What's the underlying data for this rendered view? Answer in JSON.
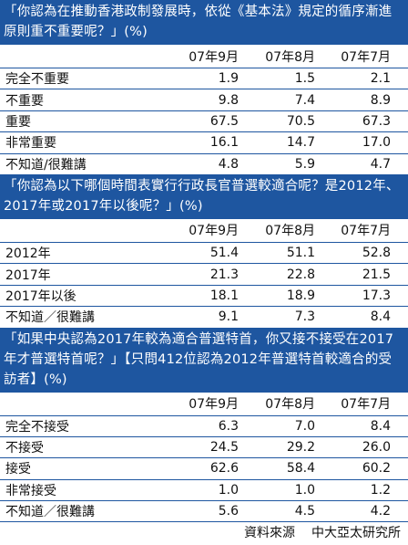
{
  "sections": [
    {
      "question": "「你認為在推動香港政制發展時，依從《基本法》規定的循序漸進原則重不重要呢？」(%)",
      "columns": [
        "07年9月",
        "07年8月",
        "07年7月"
      ],
      "rows": [
        {
          "label": "完全不重要",
          "v": [
            "1.9",
            "1.5",
            "2.1"
          ]
        },
        {
          "label": "不重要",
          "v": [
            "9.8",
            "7.4",
            "8.9"
          ]
        },
        {
          "label": "重要",
          "v": [
            "67.5",
            "70.5",
            "67.3"
          ]
        },
        {
          "label": "非常重要",
          "v": [
            "16.1",
            "14.7",
            "17.0"
          ]
        },
        {
          "label": "不知道/很難講",
          "v": [
            "4.8",
            "5.9",
            "4.7"
          ]
        }
      ]
    },
    {
      "question": "「你認為以下哪個時間表實行行政長官普選較適合呢？是2012年、2017年或2017年以後呢？」(%)",
      "columns": [
        "07年9月",
        "07年8月",
        "07年7月"
      ],
      "rows": [
        {
          "label": "2012年",
          "v": [
            "51.4",
            "51.1",
            "52.8"
          ]
        },
        {
          "label": "2017年",
          "v": [
            "21.3",
            "22.8",
            "21.5"
          ]
        },
        {
          "label": "2017年以後",
          "v": [
            "18.1",
            "18.9",
            "17.3"
          ]
        },
        {
          "label": "不知道／很難講",
          "v": [
            "9.1",
            "7.3",
            "8.4"
          ]
        }
      ]
    },
    {
      "question": "「如果中央認為2017年較為適合普選特首，你又接不接受在2017年才普選特首呢？」【只問412位認為2012年普選特首較適合的受訪者】(%)",
      "columns": [
        "07年9月",
        "07年8月",
        "07年7月"
      ],
      "rows": [
        {
          "label": "完全不接受",
          "v": [
            "6.3",
            "7.0",
            "8.4"
          ]
        },
        {
          "label": "不接受",
          "v": [
            "24.5",
            "29.2",
            "26.0"
          ]
        },
        {
          "label": "接受",
          "v": [
            "62.6",
            "58.4",
            "60.2"
          ]
        },
        {
          "label": "非常接受",
          "v": [
            "1.0",
            "1.0",
            "1.2"
          ]
        },
        {
          "label": "不知道／很難講",
          "v": [
            "5.6",
            "4.5",
            "4.2"
          ]
        }
      ]
    }
  ],
  "source": {
    "label": "資料來源",
    "value": "中大亞太研究所"
  }
}
